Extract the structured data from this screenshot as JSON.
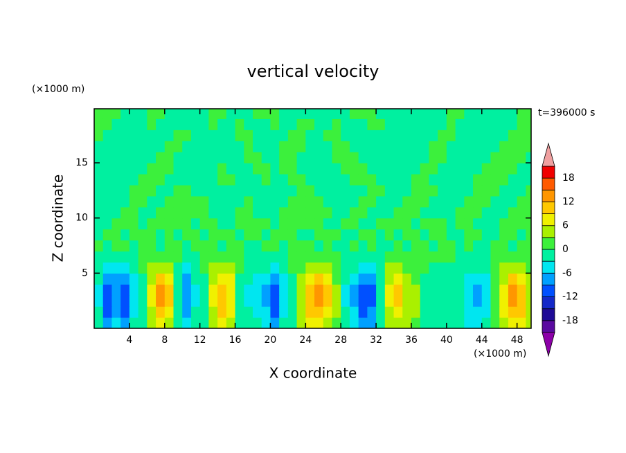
{
  "chart_data": {
    "type": "contour",
    "title": "vertical velocity",
    "xlabel": "X coordinate",
    "ylabel": "Z coordinate",
    "x_unit": "(×1000 m)",
    "y_unit": "(×1000 m)",
    "annotation": "t=396000 s",
    "xlim": [
      0,
      49.6
    ],
    "ylim": [
      0,
      19.9
    ],
    "xticks": [
      4,
      8,
      12,
      16,
      20,
      24,
      28,
      32,
      36,
      40,
      44,
      48
    ],
    "yticks": [
      5,
      10,
      15
    ],
    "x": [
      0.5,
      1.5,
      2.5,
      3.5,
      4.5,
      5.5,
      6.5,
      7.5,
      8.5,
      9.5,
      10.5,
      11.5,
      12.5,
      13.5,
      14.5,
      15.5,
      16.5,
      17.5,
      18.5,
      19.5,
      20.5,
      21.5,
      22.5,
      23.5,
      24.5,
      25.5,
      26.5,
      27.5,
      28.5,
      29.5,
      30.5,
      31.5,
      32.5,
      33.5,
      34.5,
      35.5,
      36.5,
      37.5,
      38.5,
      39.5,
      40.5,
      41.5,
      42.5,
      43.5,
      44.5,
      45.5,
      46.5,
      47.5,
      48.5,
      49.5
    ],
    "y": [
      0.5,
      1.5,
      2.5,
      3.5,
      4.5,
      5.5,
      6.5,
      7.5,
      8.5,
      9.5,
      10.5,
      11.5,
      12.5,
      13.5,
      14.5,
      15.5,
      16.5,
      17.5,
      18.5,
      19.5
    ],
    "values": [
      [
        -2,
        -7,
        -5,
        -7,
        -3,
        -1,
        4,
        7,
        5,
        -1,
        -5,
        -2,
        -1,
        4,
        7,
        5,
        -1,
        -2,
        -3,
        -4,
        -7,
        -3,
        -1,
        3,
        6,
        7,
        5,
        2,
        -2,
        -4,
        -7,
        -7,
        -2,
        4,
        5,
        3,
        2,
        -1,
        -1,
        -1,
        -1,
        -2,
        -4,
        -4,
        -3,
        1,
        4,
        7,
        6,
        3
      ],
      [
        -3,
        -10,
        -8,
        -10,
        -4,
        -1,
        5,
        10,
        8,
        -2,
        -8,
        -3,
        -1,
        5,
        9,
        7,
        -1,
        -3,
        -4,
        -6,
        -10,
        -4,
        -1,
        4,
        9,
        10,
        8,
        3,
        -3,
        -6,
        -10,
        -9,
        -3,
        5,
        8,
        4,
        3,
        -1,
        -2,
        -2,
        -2,
        -3,
        -5,
        -6,
        -4,
        2,
        6,
        10,
        9,
        4
      ],
      [
        -4,
        -12,
        -9,
        -12,
        -5,
        -1,
        6,
        12,
        9,
        -2,
        -9,
        -4,
        -1,
        6,
        11,
        8,
        -1,
        -4,
        -5,
        -7,
        -12,
        -5,
        -1,
        5,
        10,
        12,
        9,
        3,
        -4,
        -7,
        -12,
        -11,
        -3,
        6,
        9,
        5,
        3,
        -1,
        -2,
        -2,
        -2,
        -3,
        -6,
        -7,
        -5,
        2,
        7,
        12,
        10,
        5
      ],
      [
        -4,
        -12,
        -9,
        -12,
        -5,
        -1,
        6,
        12,
        9,
        -2,
        -9,
        -4,
        -1,
        6,
        11,
        8,
        -1,
        -4,
        -5,
        -7,
        -12,
        -5,
        -1,
        5,
        10,
        12,
        9,
        3,
        -4,
        -7,
        -12,
        -11,
        -3,
        6,
        9,
        5,
        3,
        -1,
        -2,
        -2,
        -2,
        -3,
        -6,
        -7,
        -5,
        2,
        7,
        12,
        10,
        5
      ],
      [
        -3,
        -9,
        -7,
        -9,
        -4,
        -1,
        5,
        9,
        7,
        -2,
        -7,
        -3,
        -1,
        5,
        8,
        6,
        -1,
        -3,
        -4,
        -5,
        -9,
        -4,
        -1,
        4,
        8,
        9,
        7,
        2,
        -3,
        -5,
        -9,
        -8,
        -2,
        5,
        7,
        4,
        2,
        -1,
        -2,
        -2,
        -2,
        -2,
        -5,
        -5,
        -4,
        2,
        5,
        9,
        8,
        4
      ],
      [
        -2,
        -5,
        -4,
        -5,
        -2,
        0,
        3,
        5,
        4,
        -1,
        -4,
        -2,
        0,
        3,
        5,
        4,
        0,
        -2,
        -2,
        -3,
        -5,
        -2,
        0,
        2,
        5,
        5,
        4,
        1,
        -2,
        -3,
        -5,
        -5,
        -1,
        3,
        4,
        2,
        1,
        0,
        -1,
        -1,
        -1,
        -1,
        -3,
        -3,
        -2,
        1,
        3,
        5,
        5,
        2
      ],
      [
        -1,
        -2,
        -2,
        -2,
        -1,
        0,
        1,
        2,
        2,
        0,
        -2,
        -1,
        0,
        1,
        2,
        2,
        0,
        -1,
        -1,
        -1,
        -2,
        -1,
        0,
        1,
        2,
        2,
        2,
        1,
        -1,
        -1,
        -2,
        -2,
        -1,
        1,
        2,
        1,
        1,
        0,
        0,
        0,
        0,
        -1,
        -1,
        -1,
        -1,
        0,
        1,
        2,
        2,
        1
      ],
      [
        1,
        -1,
        1,
        1,
        -1,
        1,
        1,
        -1,
        1,
        1,
        -1,
        1,
        1,
        1,
        -1,
        1,
        1,
        -1,
        -1,
        1,
        1,
        -1,
        1,
        1,
        1,
        -1,
        1,
        -1,
        -1,
        1,
        -1,
        1,
        -1,
        -1,
        1,
        -1,
        1,
        1,
        -1,
        1,
        1,
        -1,
        1,
        -1,
        -1,
        1,
        1,
        -1,
        1,
        1
      ],
      [
        -1,
        1,
        1,
        -1,
        1,
        1,
        1,
        -1,
        1,
        -1,
        1,
        1,
        -1,
        1,
        1,
        1,
        -1,
        1,
        1,
        -1,
        1,
        1,
        1,
        -1,
        -1,
        1,
        1,
        1,
        -1,
        -1,
        1,
        1,
        -1,
        1,
        -1,
        1,
        1,
        -1,
        1,
        1,
        -1,
        -1,
        1,
        1,
        -1,
        -1,
        1,
        1,
        -1,
        1
      ],
      [
        -1,
        -1,
        1,
        1,
        1,
        -1,
        1,
        1,
        1,
        1,
        1,
        -1,
        1,
        1,
        -1,
        -1,
        1,
        1,
        1,
        1,
        -1,
        1,
        1,
        1,
        1,
        1,
        -1,
        -1,
        1,
        1,
        -1,
        -1,
        1,
        1,
        1,
        1,
        -1,
        1,
        1,
        1,
        -1,
        1,
        1,
        -1,
        -1,
        -1,
        1,
        1,
        1,
        1
      ],
      [
        -1,
        -1,
        -1,
        1,
        1,
        -1,
        -1,
        1,
        1,
        1,
        1,
        1,
        1,
        -1,
        -1,
        -1,
        1,
        1,
        -1,
        -1,
        -1,
        1,
        1,
        1,
        1,
        1,
        1,
        -1,
        -1,
        1,
        1,
        -1,
        -1,
        -1,
        1,
        1,
        1,
        -1,
        -1,
        -1,
        -1,
        1,
        1,
        1,
        -1,
        -1,
        -1,
        1,
        1,
        1
      ],
      [
        -1,
        -1,
        -1,
        -1,
        1,
        1,
        -1,
        -1,
        1,
        1,
        1,
        1,
        1,
        -1,
        -1,
        -1,
        -1,
        1,
        -1,
        -1,
        -1,
        -1,
        1,
        1,
        1,
        1,
        -1,
        -1,
        -1,
        -1,
        1,
        1,
        -1,
        -1,
        -1,
        1,
        1,
        1,
        -1,
        -1,
        -1,
        -1,
        1,
        1,
        1,
        -1,
        -1,
        -1,
        1,
        1
      ],
      [
        -1,
        -1,
        -1,
        -1,
        1,
        1,
        1,
        -1,
        -1,
        1,
        1,
        -1,
        -1,
        -1,
        -1,
        -1,
        -1,
        -1,
        -1,
        -1,
        -1,
        -1,
        -1,
        1,
        1,
        -1,
        -1,
        -1,
        -1,
        -1,
        -1,
        1,
        1,
        -1,
        -1,
        -1,
        1,
        1,
        1,
        -1,
        -1,
        -1,
        -1,
        1,
        1,
        1,
        -1,
        -1,
        -1,
        1
      ],
      [
        -1,
        -1,
        -1,
        -1,
        -1,
        1,
        1,
        1,
        -1,
        -1,
        -1,
        -1,
        -1,
        -1,
        1,
        1,
        -1,
        -1,
        -1,
        1,
        -1,
        -1,
        1,
        1,
        -1,
        -1,
        -1,
        -1,
        -1,
        1,
        1,
        1,
        -1,
        -1,
        -1,
        -1,
        1,
        1,
        -1,
        -1,
        -1,
        -1,
        -1,
        1,
        1,
        1,
        1,
        -1,
        -1,
        -1
      ],
      [
        -1,
        -1,
        -1,
        -1,
        -1,
        -1,
        1,
        1,
        1,
        -1,
        -1,
        -1,
        -1,
        -1,
        1,
        -1,
        -1,
        -1,
        1,
        1,
        -1,
        1,
        1,
        -1,
        -1,
        -1,
        -1,
        -1,
        1,
        1,
        1,
        -1,
        -1,
        -1,
        -1,
        -1,
        -1,
        1,
        1,
        -1,
        -1,
        -1,
        -1,
        -1,
        1,
        1,
        1,
        1,
        -1,
        -1
      ],
      [
        -1,
        -1,
        -1,
        -1,
        -1,
        -1,
        -1,
        1,
        1,
        -1,
        -1,
        -1,
        -1,
        -1,
        -1,
        -1,
        -1,
        1,
        1,
        -1,
        -1,
        1,
        1,
        -1,
        -1,
        -1,
        -1,
        1,
        1,
        1,
        -1,
        -1,
        -1,
        -1,
        -1,
        -1,
        -1,
        -1,
        1,
        1,
        -1,
        -1,
        -1,
        -1,
        -1,
        1,
        1,
        1,
        1,
        -1
      ],
      [
        -1,
        -1,
        -1,
        -1,
        -1,
        -1,
        -1,
        -1,
        1,
        1,
        -1,
        -1,
        -1,
        -1,
        -1,
        -1,
        -1,
        1,
        -1,
        -1,
        -1,
        1,
        1,
        1,
        -1,
        -1,
        -1,
        1,
        1,
        -1,
        -1,
        -1,
        -1,
        -1,
        -1,
        -1,
        -1,
        -1,
        1,
        1,
        -1,
        -1,
        -1,
        -1,
        -1,
        -1,
        1,
        1,
        1,
        1
      ],
      [
        1,
        -1,
        -1,
        -1,
        -1,
        -1,
        -1,
        -1,
        -1,
        1,
        1,
        -1,
        -1,
        -1,
        -1,
        -1,
        1,
        1,
        -1,
        -1,
        -1,
        -1,
        1,
        1,
        -1,
        -1,
        1,
        1,
        -1,
        -1,
        -1,
        -1,
        -1,
        -1,
        -1,
        -1,
        -1,
        -1,
        -1,
        1,
        1,
        -1,
        -1,
        -1,
        -1,
        -1,
        -1,
        1,
        1,
        1
      ],
      [
        1,
        1,
        -1,
        -1,
        -1,
        -1,
        1,
        -1,
        -1,
        -1,
        -1,
        -1,
        -1,
        1,
        -1,
        -1,
        1,
        -1,
        -1,
        -1,
        1,
        -1,
        -1,
        1,
        1,
        -1,
        -1,
        1,
        -1,
        -1,
        -1,
        1,
        1,
        -1,
        -1,
        -1,
        -1,
        -1,
        -1,
        -1,
        1,
        -1,
        -1,
        -1,
        -1,
        -1,
        -1,
        -1,
        1,
        1
      ],
      [
        1,
        1,
        1,
        -1,
        -1,
        -1,
        1,
        1,
        -1,
        -1,
        -1,
        -1,
        -1,
        1,
        1,
        -1,
        -1,
        -1,
        1,
        1,
        1,
        -1,
        -1,
        -1,
        -1,
        -1,
        -1,
        -1,
        -1,
        1,
        1,
        1,
        -1,
        -1,
        -1,
        -1,
        -1,
        -1,
        -1,
        -1,
        1,
        1,
        -1,
        -1,
        -1,
        -1,
        -1,
        -1,
        1,
        1
      ]
    ],
    "levels": [
      -21,
      -18,
      -15,
      -12,
      -9,
      -6,
      -3,
      0,
      3,
      6,
      9,
      12,
      15,
      18,
      21
    ],
    "colors": [
      "#8c00a8",
      "#5a0aa0",
      "#1e0a96",
      "#1428c8",
      "#0050ff",
      "#00a0ff",
      "#00e6f0",
      "#00f0a0",
      "#3cf03c",
      "#aaf000",
      "#f0f000",
      "#ffc800",
      "#ff9600",
      "#ff5a00",
      "#f00000",
      "#f0a0a0"
    ],
    "colorbar_ticks": [
      18,
      12,
      6,
      0,
      -6,
      -12,
      -18
    ]
  }
}
